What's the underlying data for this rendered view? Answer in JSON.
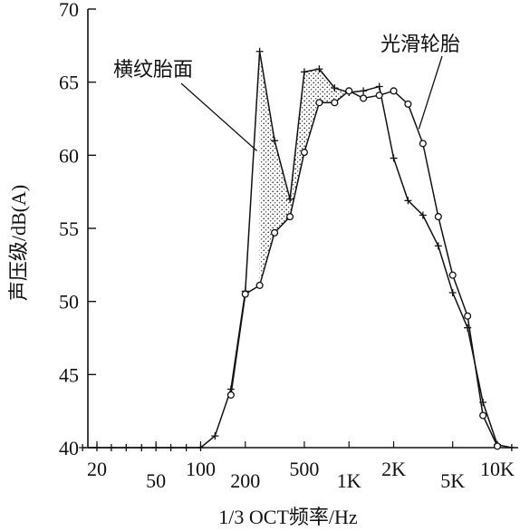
{
  "chart_data": {
    "type": "line",
    "title": "",
    "xlabel": "1/3 OCT频率/Hz",
    "ylabel": "声压级/dB(A)",
    "ylim": [
      40,
      70
    ],
    "yticks": [
      "40",
      "45",
      "50",
      "55",
      "60",
      "65",
      "70"
    ],
    "x_scale": "log",
    "xlim": [
      16,
      12500
    ],
    "xticks": [
      {
        "label": "20",
        "value": 20,
        "row": "upper"
      },
      {
        "label": "50",
        "value": 50,
        "row": "lower"
      },
      {
        "label": "100",
        "value": 100,
        "row": "upper"
      },
      {
        "label": "200",
        "value": 200,
        "row": "lower"
      },
      {
        "label": "500",
        "value": 500,
        "row": "upper"
      },
      {
        "label": "1K",
        "value": 1000,
        "row": "lower"
      },
      {
        "label": "2K",
        "value": 2000,
        "row": "upper"
      },
      {
        "label": "5K",
        "value": 5000,
        "row": "lower"
      },
      {
        "label": "10K",
        "value": 10000,
        "row": "upper"
      }
    ],
    "grid": false,
    "legend": "none",
    "shaded_region": "dotted area between the two series from 250 Hz to 1000 Hz",
    "series": [
      {
        "name": "横纹胎面",
        "marker": "plus",
        "points": [
          [
            16,
            40
          ],
          [
            20,
            40
          ],
          [
            25,
            40
          ],
          [
            31.5,
            40
          ],
          [
            40,
            40
          ],
          [
            50,
            40
          ],
          [
            63,
            40
          ],
          [
            80,
            40
          ],
          [
            100,
            40
          ],
          [
            125,
            40.8
          ],
          [
            160,
            44
          ],
          [
            200,
            50.7
          ],
          [
            250,
            67.1
          ],
          [
            315,
            61
          ],
          [
            400,
            57
          ],
          [
            500,
            65.7
          ],
          [
            630,
            65.9
          ],
          [
            800,
            64.6
          ],
          [
            1000,
            64.3
          ],
          [
            1250,
            64.4
          ],
          [
            1600,
            64.7
          ],
          [
            2000,
            59.8
          ],
          [
            2500,
            56.9
          ],
          [
            3150,
            55.9
          ],
          [
            4000,
            53.8
          ],
          [
            5000,
            50.6
          ],
          [
            6300,
            48.2
          ],
          [
            8000,
            43.1
          ],
          [
            10000,
            40.2
          ],
          [
            12500,
            40
          ]
        ]
      },
      {
        "name": "光滑轮胎",
        "marker": "circle",
        "points": [
          [
            160,
            43.6
          ],
          [
            200,
            50.5
          ],
          [
            250,
            51.1
          ],
          [
            315,
            54.7
          ],
          [
            400,
            55.8
          ],
          [
            500,
            60.2
          ],
          [
            630,
            63.6
          ],
          [
            800,
            63.6
          ],
          [
            1000,
            64.4
          ],
          [
            1250,
            63.9
          ],
          [
            1600,
            64.1
          ],
          [
            2000,
            64.4
          ],
          [
            2500,
            63.5
          ],
          [
            3150,
            60.8
          ],
          [
            4000,
            55.8
          ],
          [
            5000,
            51.8
          ],
          [
            6300,
            49
          ],
          [
            8000,
            42.2
          ],
          [
            10000,
            40.1
          ]
        ]
      }
    ],
    "annotations": [
      {
        "text": "横纹胎面",
        "series": "横纹胎面"
      },
      {
        "text": "光滑轮胎",
        "series": "光滑轮胎"
      }
    ]
  }
}
